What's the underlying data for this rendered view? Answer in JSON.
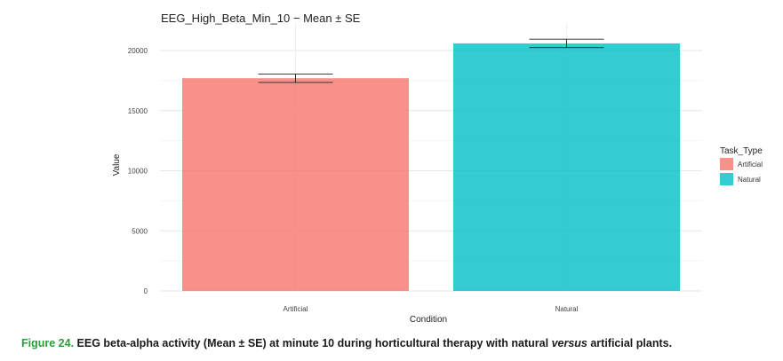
{
  "caption": {
    "label": "Figure 24.",
    "text_before": " EEG beta-alpha activity (Mean ± SE) at minute 10 during horticultural therapy with natural ",
    "text_emph": "versus",
    "text_after": " artificial plants.",
    "label_color": "#2e9c3a"
  },
  "chart_data": {
    "type": "bar",
    "title": "EEG_High_Beta_Min_10 − Mean ± SE",
    "xlabel": "Condition",
    "ylabel": "Value",
    "categories": [
      "Artificial",
      "Natural"
    ],
    "values": [
      17700,
      20600
    ],
    "se": [
      350,
      350
    ],
    "colors": [
      "#f8766d",
      "#00bfc4"
    ],
    "ylim": [
      0,
      21700
    ],
    "yticks": [
      0,
      5000,
      10000,
      15000,
      20000
    ],
    "grid": true,
    "legend": {
      "title": "Task_Type",
      "placement": "right",
      "items": [
        {
          "label": "Artificial",
          "color": "#f8766d"
        },
        {
          "label": "Natural",
          "color": "#00bfc4"
        }
      ]
    }
  }
}
